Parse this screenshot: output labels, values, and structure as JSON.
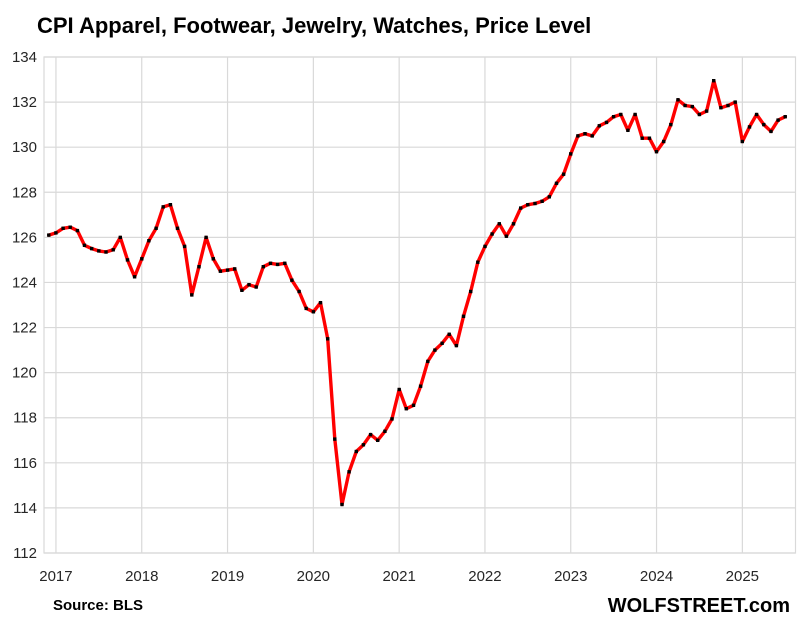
{
  "title": "CPI Apparel, Footwear, Jewelry, Watches, Price Level",
  "source_note": "Source: BLS",
  "branding": "WOLFSTREET.com",
  "chart_data": {
    "type": "line",
    "series_name": "CPI Apparel, Footwear, Jewelry, Watches, Price Level",
    "frequency": "monthly",
    "start": "2016-12",
    "end": "2025-07",
    "x_tick_labels": [
      "2017",
      "2018",
      "2019",
      "2020",
      "2021",
      "2022",
      "2023",
      "2024",
      "2025"
    ],
    "y_tick_labels": [
      "112",
      "114",
      "116",
      "118",
      "120",
      "122",
      "124",
      "126",
      "128",
      "130",
      "132",
      "134"
    ],
    "ylim": [
      112,
      134
    ],
    "grid": true,
    "legend": "none",
    "xlabel": "",
    "ylabel": "",
    "line_color": "#ff0000",
    "marker_color": "#000000",
    "grid_color": "#d9d9d9",
    "values": [
      126.1,
      126.2,
      126.4,
      126.45,
      126.3,
      125.65,
      125.5,
      125.4,
      125.35,
      125.45,
      126.0,
      125.0,
      124.25,
      125.05,
      125.85,
      126.4,
      127.35,
      127.45,
      126.4,
      125.6,
      123.45,
      124.7,
      126.0,
      125.05,
      124.5,
      124.55,
      124.6,
      123.65,
      123.9,
      123.8,
      124.7,
      124.85,
      124.8,
      124.85,
      124.1,
      123.6,
      122.85,
      122.7,
      123.1,
      121.5,
      117.05,
      114.15,
      115.6,
      116.5,
      116.8,
      117.25,
      117.0,
      117.4,
      117.95,
      119.25,
      118.4,
      118.55,
      119.4,
      120.5,
      121.0,
      121.3,
      121.7,
      121.2,
      122.5,
      123.6,
      124.9,
      125.6,
      126.15,
      126.6,
      126.05,
      126.6,
      127.3,
      127.45,
      127.5,
      127.6,
      127.8,
      128.4,
      128.8,
      129.7,
      130.5,
      130.6,
      130.5,
      130.95,
      131.1,
      131.35,
      131.45,
      130.75,
      131.45,
      130.4,
      130.4,
      129.8,
      130.25,
      131.0,
      132.1,
      131.85,
      131.8,
      131.45,
      131.6,
      132.95,
      131.75,
      131.85,
      132.0,
      130.25,
      130.9,
      131.45,
      131.0,
      130.7,
      131.2,
      131.35
    ]
  }
}
